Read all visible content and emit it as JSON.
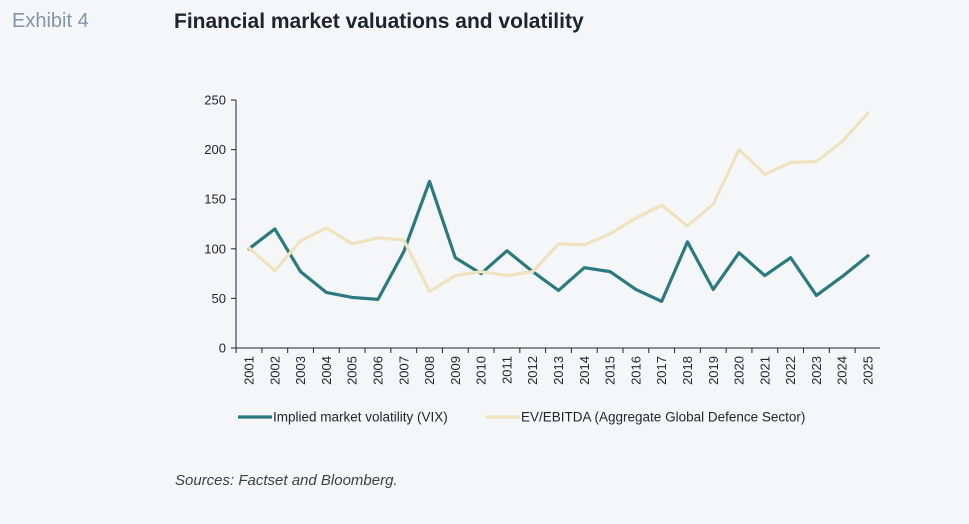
{
  "header": {
    "exhibit": "Exhibit 4",
    "title": "Financial market valuations and volatility"
  },
  "footer": {
    "sources": "Sources: Factset and Bloomberg."
  },
  "colors": {
    "vix": "#2a7a80",
    "ev_ebitda": "#efe2bf",
    "axis": "#1f2330",
    "background": "#f5f6f7"
  },
  "chart_data": {
    "type": "line",
    "title": "",
    "xlabel": "",
    "ylabel": "",
    "ylim": [
      0,
      250
    ],
    "yticks": [
      0,
      50,
      100,
      150,
      200,
      250
    ],
    "grid": false,
    "legend_position": "bottom",
    "x": [
      "2001",
      "2002",
      "2003",
      "2004",
      "2005",
      "2006",
      "2007",
      "2008",
      "2009",
      "2010",
      "2011",
      "2012",
      "2013",
      "2014",
      "2015",
      "2016",
      "2017",
      "2018",
      "2019",
      "2020",
      "2021",
      "2022",
      "2023",
      "2024",
      "2025"
    ],
    "series": [
      {
        "name": "Implied market volatility (VIX)",
        "color": "#2a7a80",
        "values": [
          100,
          120,
          77,
          56,
          51,
          49,
          97,
          168,
          91,
          75,
          98,
          77,
          58,
          81,
          77,
          59,
          47,
          107,
          59,
          96,
          73,
          91,
          53,
          72,
          93
        ]
      },
      {
        "name": "EV/EBITDA (Aggregate Global Defence Sector)",
        "color": "#efe2bf",
        "values": [
          101,
          78,
          108,
          121,
          105,
          111,
          109,
          57,
          73,
          77,
          73,
          77,
          105,
          104,
          115,
          131,
          144,
          123,
          145,
          200,
          175,
          187,
          188,
          208,
          237
        ]
      }
    ]
  }
}
